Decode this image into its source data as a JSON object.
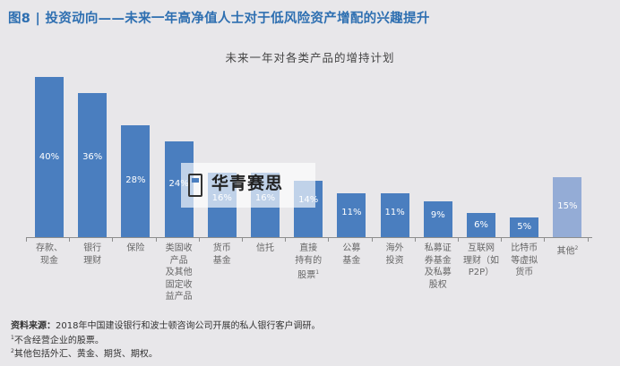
{
  "header": {
    "figure_title": "图8 | 投资动向——未来一年高净值人士对于低风险资产增配的兴趣提升"
  },
  "chart_data": {
    "type": "bar",
    "title": "未来一年对各类产品的增持计划",
    "xlabel": "",
    "ylabel": "",
    "ylim": [
      0,
      40
    ],
    "grid": false,
    "categories": [
      "存款、现金",
      "银行理财",
      "保险",
      "类固收产品及其他固定收益产品",
      "货币基金",
      "信托",
      "直接持有的股票¹",
      "公募基金",
      "海外投资",
      "私募证券基金及私募股权",
      "互联网理财（如P2P）",
      "比特币等虚拟货币",
      "其他²"
    ],
    "values": [
      40,
      36,
      28,
      24,
      16,
      16,
      14,
      11,
      11,
      9,
      6,
      5,
      15
    ],
    "value_labels": [
      "40%",
      "36%",
      "28%",
      "24%",
      "16%",
      "16%",
      "14%",
      "11%",
      "11%",
      "9%",
      "6%",
      "5%",
      "15%"
    ],
    "colors": {
      "primary": "#4a7ebf",
      "other": "#94acd6"
    }
  },
  "axis_labels": [
    "存款、\n现金",
    "银行\n理财",
    "保险",
    "类固收\n产品\n及其他\n固定收\n益产品",
    "货币\n基金",
    "信托",
    "直接\n持有的\n股票",
    "公募\n基金",
    "海外\n投资",
    "私募证\n券基金\n及私募\n股权",
    "互联网\n理财（如\nP2P）",
    "比特币\n等虚拟\n货币",
    "其他"
  ],
  "footnotes": {
    "source_label": "资料来源：",
    "source_text": "2018年中国建设银行和波士顿咨询公司开展的私人银行客户调研。",
    "note1_mark": "1",
    "note1": "不含经营企业的股票。",
    "note2_mark": "2",
    "note2": "其他包括外汇、黄金、期货、期权。"
  },
  "watermark": {
    "text": "华青赛思"
  }
}
